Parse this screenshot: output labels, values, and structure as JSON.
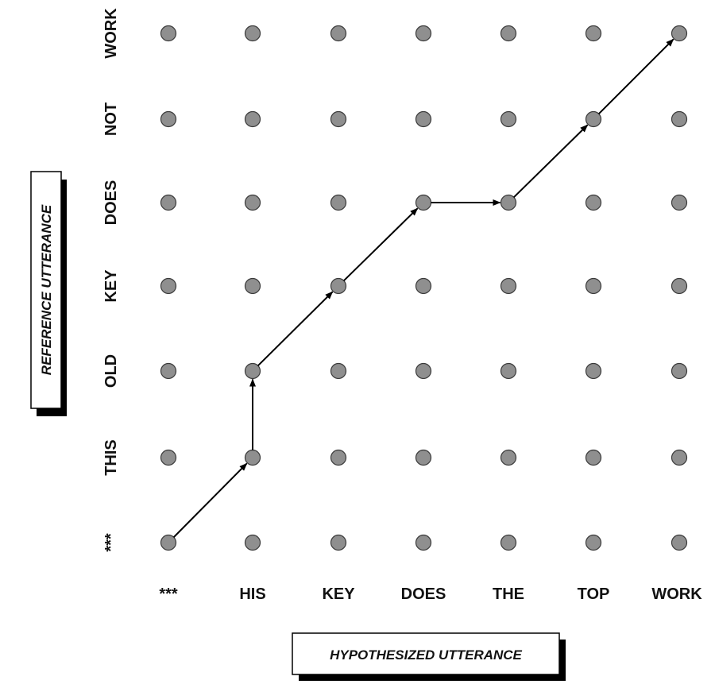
{
  "diagram": {
    "x_axis_title": "HYPOTHESIZED UTTERANCE",
    "y_axis_title": "REFERENCE UTTERANCE",
    "x_labels": [
      "***",
      "HIS",
      "KEY",
      "DOES",
      "THE",
      "TOP",
      "WORK"
    ],
    "y_labels": [
      "***",
      "THIS",
      "OLD",
      "KEY",
      "DOES",
      "NOT",
      "WORK"
    ],
    "alignment_path": [
      [
        0,
        0
      ],
      [
        1,
        1
      ],
      [
        1,
        2
      ],
      [
        2,
        3
      ],
      [
        3,
        4
      ],
      [
        4,
        4
      ],
      [
        5,
        5
      ],
      [
        6,
        6
      ]
    ],
    "colors": {
      "node": "#8f8f8f",
      "node_stroke": "#3a3a3a",
      "arrow": "#000000",
      "text": "#111111"
    }
  }
}
